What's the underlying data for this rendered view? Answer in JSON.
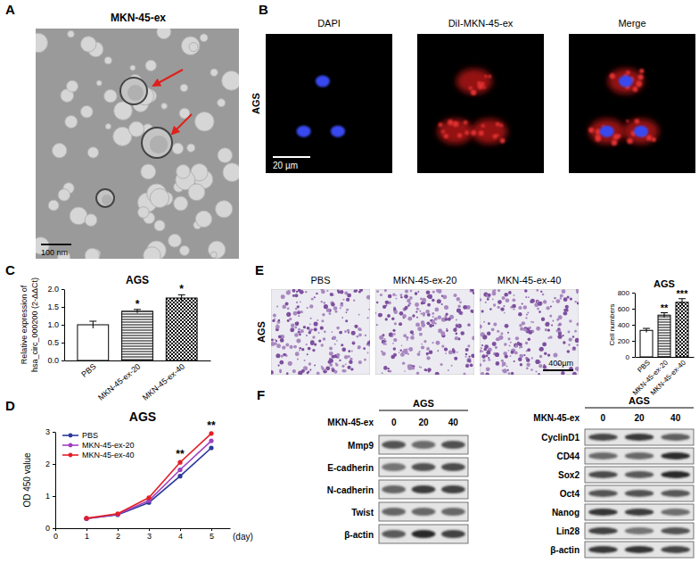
{
  "chart_data": [
    {
      "type": "bar",
      "title": "AGS",
      "y_label": [
        "Relative expression of",
        "hsa_circ_000200 (2-ΔΔCt)"
      ],
      "categories": [
        "PBS",
        "MKN-45-ex-20",
        "MKN-45-ex-40"
      ],
      "values": [
        1.0,
        1.38,
        1.75
      ],
      "errors": [
        0.1,
        0.05,
        0.09
      ],
      "significance": [
        null,
        "*",
        "*"
      ],
      "color": "#000000",
      "ylim": [
        0,
        2
      ],
      "yticks": [
        {
          "value": 0,
          "label": "0.0"
        },
        0.5,
        {
          "value": 1,
          "label": "1.0"
        },
        1.5,
        {
          "value": 2,
          "label": "2.0"
        }
      ]
    },
    {
      "type": "line",
      "title": "AGS",
      "y_label": "OD 450 value",
      "x_label": "(day)",
      "x": [
        1,
        2,
        3,
        4,
        5
      ],
      "series": [
        {
          "name": "PBS",
          "color": "#2b3a9a",
          "values": [
            0.3,
            0.42,
            0.8,
            1.62,
            2.5
          ]
        },
        {
          "name": "MKN-45-ex-20",
          "color": "#a040c0",
          "values": [
            0.3,
            0.43,
            0.86,
            1.82,
            2.72
          ]
        },
        {
          "name": "MKN-45-ex-40",
          "color": "#e41e26",
          "values": [
            0.31,
            0.45,
            0.95,
            2.05,
            2.95
          ]
        }
      ],
      "marker": "circle",
      "legend": "upper left",
      "xlim": [
        0,
        5.6
      ],
      "xticks": [
        0,
        1,
        2,
        3,
        4,
        5
      ],
      "ylim": [
        0,
        3
      ],
      "yticks": [
        0,
        1,
        2,
        3
      ],
      "annotations": [
        {
          "x": 4,
          "text": "**"
        },
        {
          "x": 5,
          "text": "**"
        }
      ]
    },
    {
      "type": "bar",
      "title": "AGS",
      "y_label": "Cell numbers",
      "categories": [
        "PBS",
        "MKN-45-ex-20",
        "MKN-45-ex-40"
      ],
      "values": [
        330,
        520,
        680
      ],
      "errors": [
        25,
        30,
        45
      ],
      "significance": [
        null,
        "**",
        "***"
      ],
      "color": "#000000",
      "ylim": [
        0,
        800
      ],
      "yticks": [
        0,
        200,
        400,
        600,
        800
      ]
    }
  ],
  "panels": {
    "A": {
      "label": "A",
      "title": "MKN-45-ex",
      "scale_bar": "100 nm"
    },
    "B": {
      "label": "B",
      "row_label": "AGS",
      "columns": [
        "DAPI",
        "DiI-MKN-45-ex",
        "Merge"
      ],
      "scale_bar": "20 µm"
    },
    "C": {
      "label": "C"
    },
    "D": {
      "label": "D"
    },
    "E": {
      "label": "E",
      "row_label": "AGS",
      "columns": [
        "PBS",
        "MKN-45-ex-20",
        "MKN-45-ex-40"
      ],
      "scale_bar": "400µm"
    },
    "F": {
      "label": "F",
      "blots": [
        {
          "title": "AGS",
          "treatment": "MKN-45-ex",
          "doses": [
            0,
            20,
            40
          ],
          "proteins": [
            "Mmp9",
            "E-cadherin",
            "N-cadherin",
            "Twist",
            "β-actin"
          ]
        },
        {
          "title": "AGS",
          "treatment": "MKN-45-ex",
          "doses": [
            0,
            20,
            40
          ],
          "proteins": [
            "CyclinD1",
            "CD44",
            "Sox2",
            "Oct4",
            "Nanog",
            "Lin28",
            "β-actin"
          ]
        }
      ]
    }
  }
}
